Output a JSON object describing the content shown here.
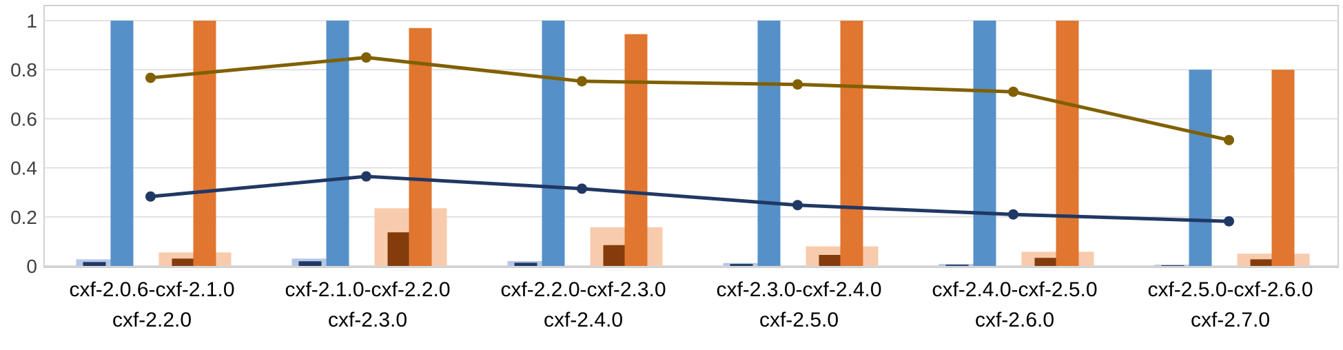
{
  "chart_data": {
    "type": "bar",
    "categories": [
      [
        "cxf-2.0.6-cxf-2.1.0",
        "cxf-2.2.0"
      ],
      [
        "cxf-2.1.0-cxf-2.2.0",
        "cxf-2.3.0"
      ],
      [
        "cxf-2.2.0-cxf-2.3.0",
        "cxf-2.4.0"
      ],
      [
        "cxf-2.3.0-cxf-2.4.0",
        "cxf-2.5.0"
      ],
      [
        "cxf-2.4.0-cxf-2.5.0",
        "cxf-2.6.0"
      ],
      [
        "cxf-2.5.0-cxf-2.6.0",
        "cxf-2.7.0"
      ]
    ],
    "ylim": [
      0,
      1
    ],
    "yticks": [
      "0",
      "0.2",
      "0.4",
      "0.6",
      "0.8",
      "1"
    ],
    "grid": true,
    "series": [
      {
        "kind": "bar",
        "layer": "wide",
        "group": "blue",
        "color": "#b4c7e7",
        "values": [
          0.027,
          0.03,
          0.02,
          0.012,
          0.008,
          0.005
        ]
      },
      {
        "kind": "bar",
        "layer": "narrow",
        "group": "blue",
        "color": "#1f3864",
        "values": [
          0.016,
          0.019,
          0.013,
          0.008,
          0.005,
          0.003
        ]
      },
      {
        "kind": "bar",
        "layer": "narrow",
        "group": "blue-tall",
        "color": "#5590c8",
        "values": [
          1.0,
          1.0,
          1.0,
          1.0,
          1.0,
          0.8
        ]
      },
      {
        "kind": "bar",
        "layer": "wide",
        "group": "orange",
        "color": "#f8cbad",
        "values": [
          0.055,
          0.235,
          0.158,
          0.08,
          0.058,
          0.05
        ]
      },
      {
        "kind": "bar",
        "layer": "narrow",
        "group": "orange",
        "color": "#843c0c",
        "values": [
          0.03,
          0.137,
          0.085,
          0.045,
          0.033,
          0.027
        ]
      },
      {
        "kind": "bar",
        "layer": "narrow",
        "group": "orange-tall",
        "color": "#e07630",
        "values": [
          1.0,
          0.97,
          0.945,
          1.0,
          1.0,
          0.8
        ]
      },
      {
        "kind": "line",
        "color": "#806000",
        "values": [
          0.767,
          0.85,
          0.753,
          0.74,
          0.71,
          0.513
        ]
      },
      {
        "kind": "line",
        "color": "#203864",
        "values": [
          0.283,
          0.365,
          0.315,
          0.248,
          0.21,
          0.182
        ]
      }
    ]
  }
}
